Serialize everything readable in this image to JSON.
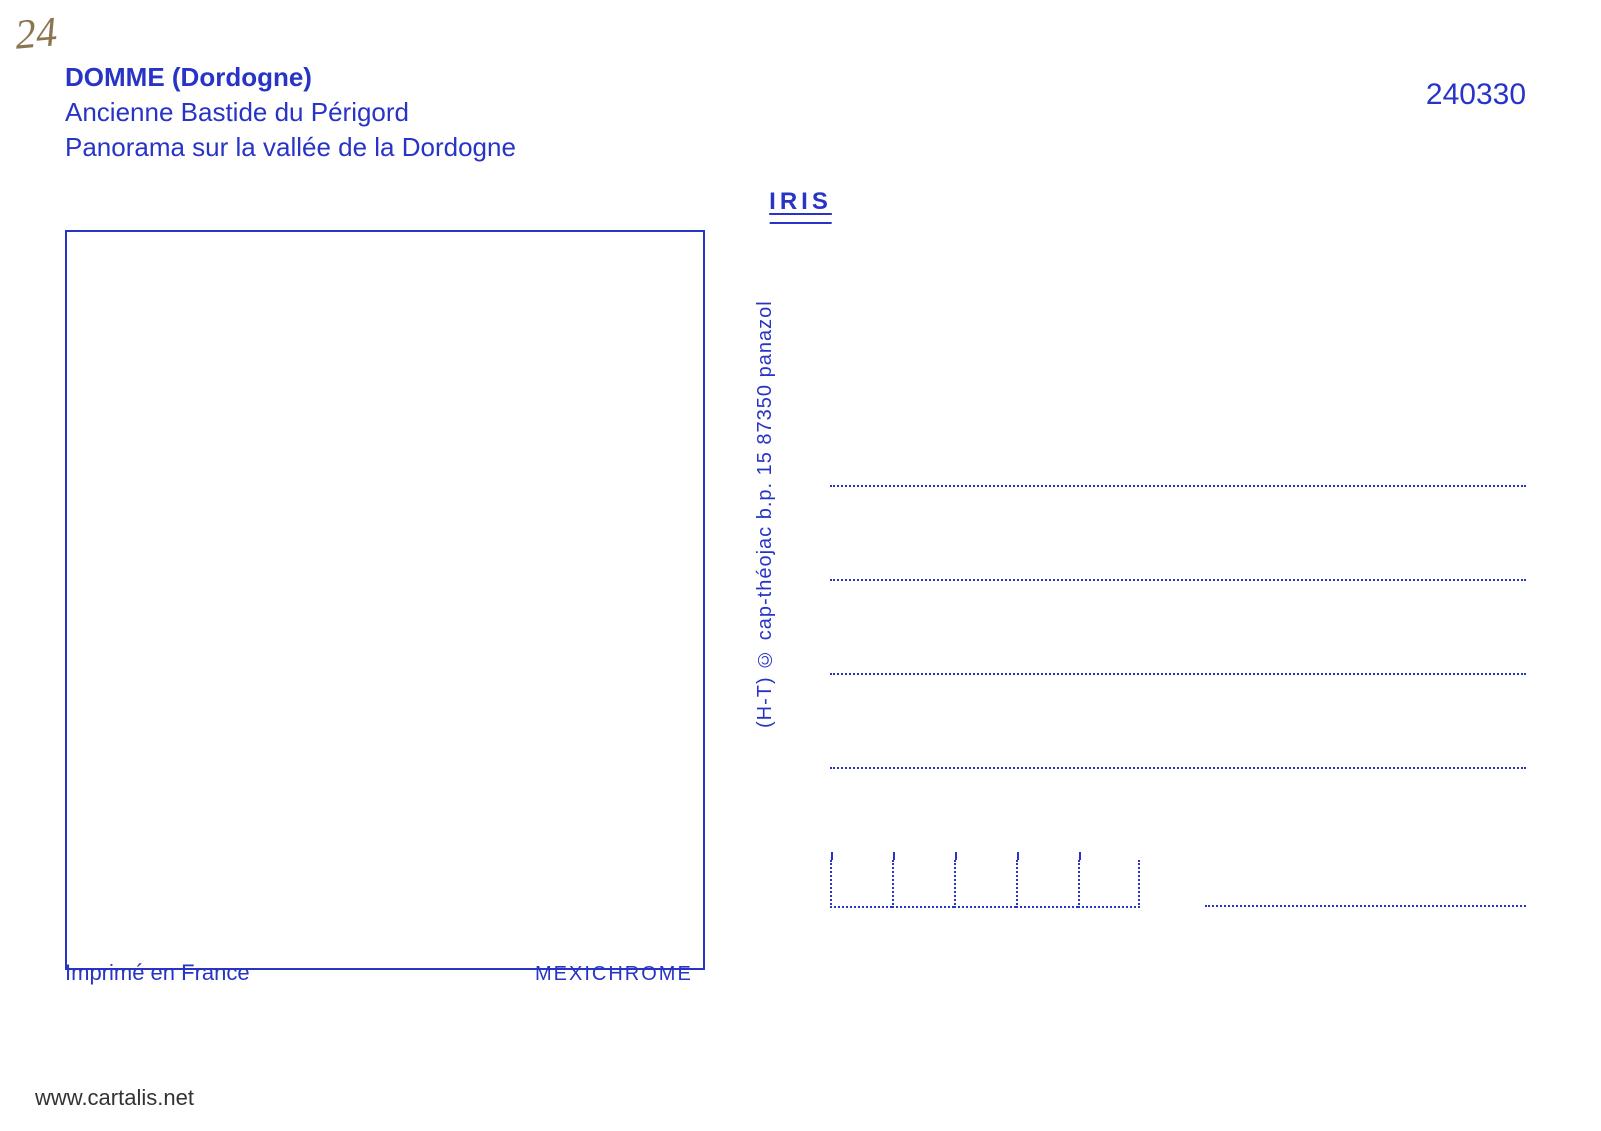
{
  "handwritten": {
    "note": "24"
  },
  "header": {
    "title": "DOMME (Dordogne)",
    "line2": "Ancienne Bastide du Périgord",
    "line3": "Panorama sur la vallée de la Dordogne"
  },
  "reference": {
    "number": "240330"
  },
  "brand": {
    "label": "IRIS"
  },
  "credit": {
    "text": "(H-T) © cap-théojac b.p. 15 87350 panazol"
  },
  "footer": {
    "left": "Imprimé en France",
    "center": "MEXICHROME"
  },
  "watermark": {
    "text": "www.cartalis.net"
  },
  "layout": {
    "address_line_count": 4,
    "postal_box_count": 5
  },
  "colors": {
    "primary": "#2734c6",
    "handwritten": "#8a7550",
    "background": "#ffffff",
    "watermark": "#333333"
  },
  "typography": {
    "header_fontsize": 26,
    "reference_fontsize": 30,
    "brand_fontsize": 24,
    "credit_fontsize": 20,
    "footer_fontsize": 22,
    "handwritten_fontsize": 42
  }
}
